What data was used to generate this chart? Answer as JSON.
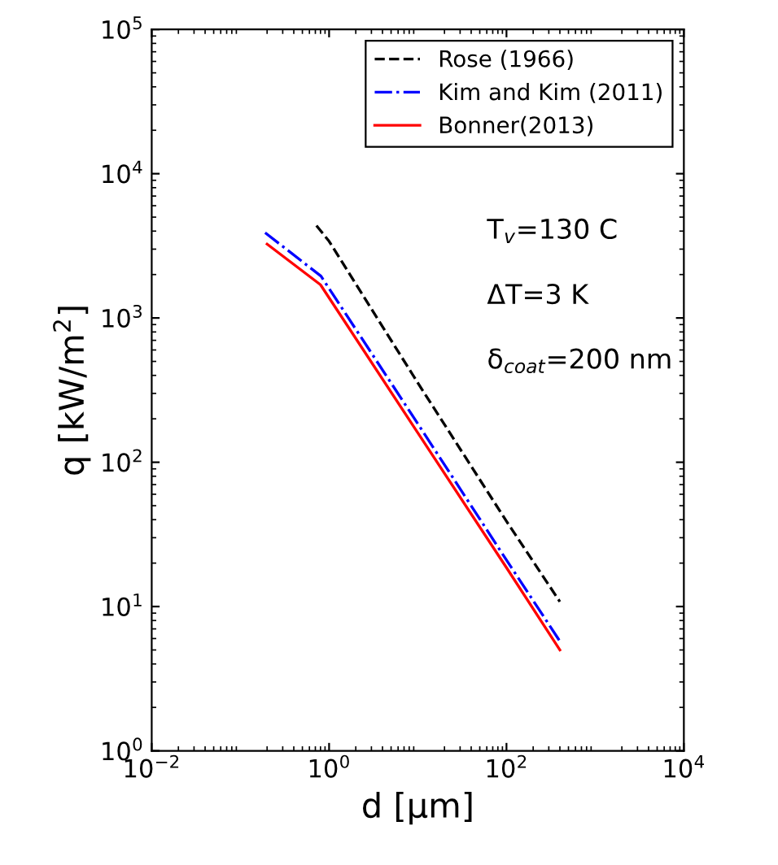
{
  "chart_data": {
    "type": "line",
    "xlabel": "d [μm]",
    "ylabel": "q [kW/m$^{2}$]",
    "log": "xy",
    "grid": false,
    "legend": "top right",
    "xlim": [
      0.01,
      10000
    ],
    "ylim": [
      1,
      100000
    ],
    "xticks": [
      {
        "value": 0.01,
        "label": "10$^{−2}$"
      },
      {
        "value": 1,
        "label": "10$^{0}$"
      },
      {
        "value": 100,
        "label": "10$^{2}$"
      },
      {
        "value": 10000,
        "label": "10$^{4}$"
      }
    ],
    "yticks": [
      {
        "value": 1,
        "label": "10$^{0}$"
      },
      {
        "value": 10,
        "label": "10$^{1}$"
      },
      {
        "value": 100,
        "label": "10$^{2}$"
      },
      {
        "value": 1000,
        "label": "10$^{3}$"
      },
      {
        "value": 10000,
        "label": "10$^{4}$"
      },
      {
        "value": 100000,
        "label": "10$^{5}$"
      }
    ],
    "series": [
      {
        "name": "Rose (1966)",
        "color": "#000000",
        "line_style": "dashed",
        "x": [
          0.72,
          1,
          10,
          100,
          400
        ],
        "values": [
          4370,
          3400,
          355,
          39,
          10.8
        ]
      },
      {
        "name": "Kim and Kim (2011)",
        "color": "#0000ff",
        "line_style": "dashdot",
        "x": [
          0.19,
          0.81,
          10,
          100,
          400
        ],
        "values": [
          3900,
          1950,
          185,
          21,
          5.75
        ]
      },
      {
        "name": "Bonner(2013)",
        "color": "#ff0000",
        "line_style": "solid",
        "x": [
          0.2,
          0.8,
          10,
          100,
          400
        ],
        "values": [
          3250,
          1700,
          160,
          18.6,
          5.0
        ]
      }
    ],
    "annotations": [
      "T$_{v}$=130 C",
      "ΔT=3 K",
      "δ$_{coat}$=200 nm"
    ]
  }
}
